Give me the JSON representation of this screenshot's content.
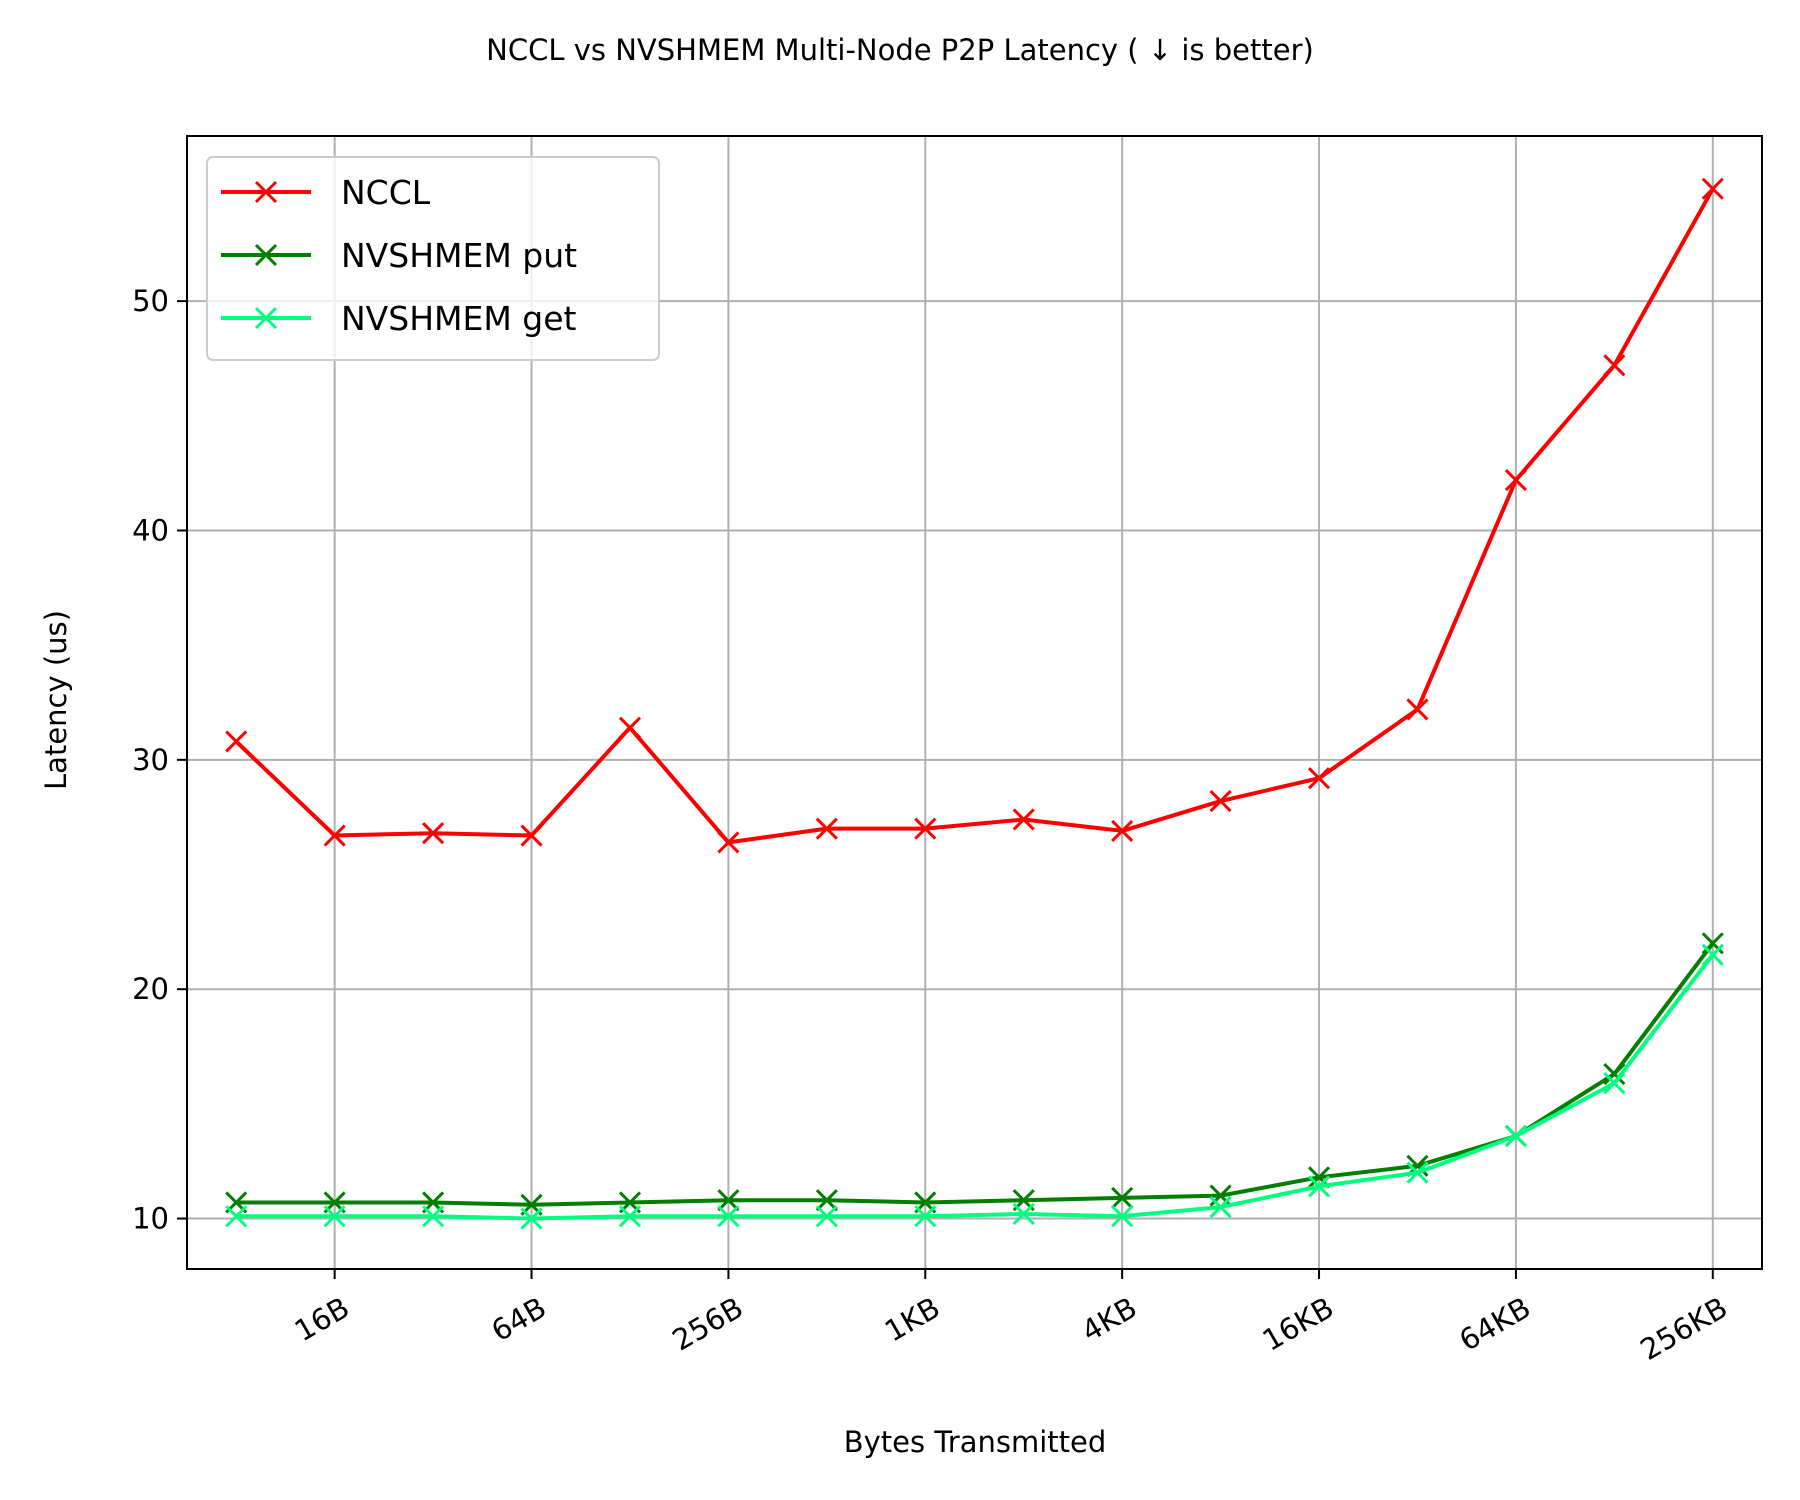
{
  "chart_data": {
    "type": "line",
    "title": "NCCL vs NVSHMEM Multi-Node P2P Latency ( ↓  is better)",
    "xlabel": "Bytes Transmitted",
    "ylabel": "Latency (us)",
    "x": [
      8,
      16,
      32,
      64,
      128,
      256,
      512,
      1024,
      2048,
      4096,
      8192,
      16384,
      32768,
      65536,
      131072,
      262144
    ],
    "xscale": "log2",
    "xticks": [
      16,
      64,
      256,
      1024,
      4096,
      16384,
      65536,
      262144
    ],
    "xtick_labels": [
      "16B",
      "64B",
      "256B",
      "1KB",
      "4KB",
      "16KB",
      "64KB",
      "256KB"
    ],
    "yticks": [
      10,
      20,
      30,
      40,
      50
    ],
    "ylim": [
      7.8,
      57.2
    ],
    "grid": true,
    "legend_position": "top-left",
    "series": [
      {
        "name": "NCCL",
        "color": "#ff0000",
        "marker": "x",
        "values": [
          30.8,
          26.7,
          26.8,
          26.7,
          31.4,
          26.4,
          27.0,
          27.0,
          27.4,
          26.9,
          28.2,
          29.2,
          32.2,
          42.2,
          47.2,
          54.9
        ]
      },
      {
        "name": "NVSHMEM put",
        "color": "#007f00",
        "marker": "x",
        "values": [
          10.7,
          10.7,
          10.7,
          10.6,
          10.7,
          10.8,
          10.8,
          10.7,
          10.8,
          10.9,
          11.0,
          11.8,
          12.3,
          13.6,
          16.3,
          22.0
        ]
      },
      {
        "name": "NVSHMEM get",
        "color": "#00ff7f",
        "marker": "x",
        "values": [
          10.1,
          10.1,
          10.1,
          10.0,
          10.1,
          10.1,
          10.1,
          10.1,
          10.2,
          10.1,
          10.5,
          11.4,
          12.0,
          13.6,
          15.9,
          21.5
        ]
      }
    ]
  }
}
